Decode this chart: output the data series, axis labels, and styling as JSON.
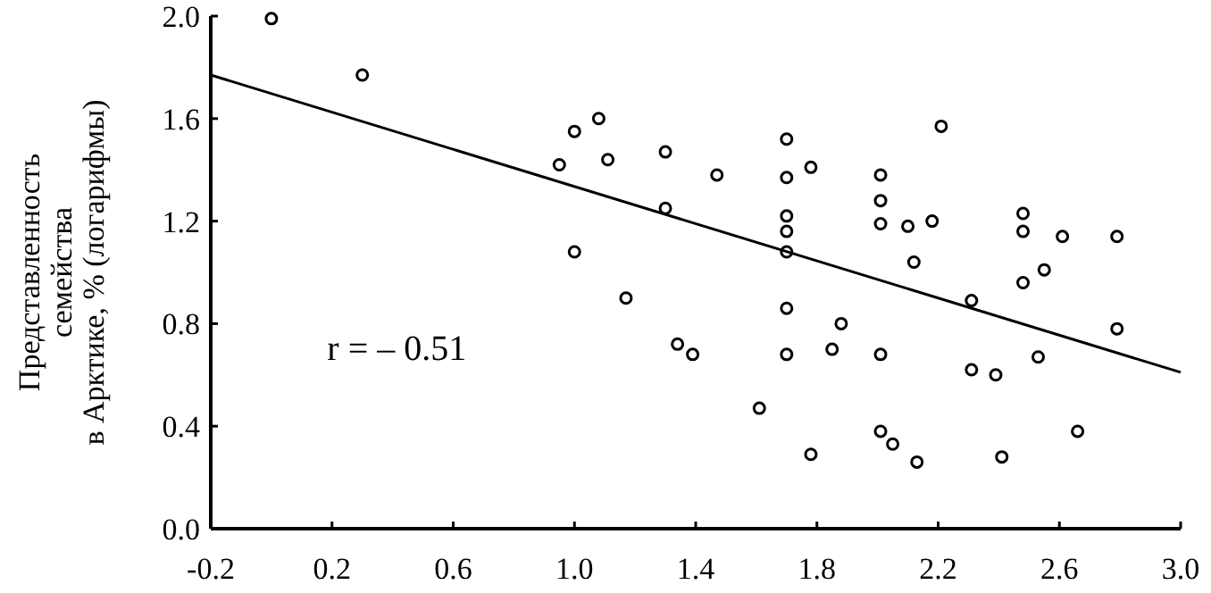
{
  "chart_data": {
    "type": "scatter",
    "ylabel": "Представленность\nсемейства\nв Арктике, % (логарифмы)",
    "annotations": [
      "r = – 0.51"
    ],
    "xlim": [
      -0.2,
      3.0
    ],
    "xticks": [
      -0.2,
      0.2,
      0.6,
      {
        "value": 1.0,
        "label": "1.0"
      },
      1.4,
      1.8,
      2.2,
      2.6,
      {
        "value": 3.0,
        "label": "3.0"
      }
    ],
    "ylim": [
      0,
      2.0
    ],
    "yticks": [
      {
        "value": 0,
        "label": "0.0"
      },
      0.4,
      0.8,
      1.2,
      1.6,
      {
        "value": 2.0,
        "label": "2.0"
      }
    ],
    "series": [
      {
        "marker": "circle",
        "color": "#000000",
        "x": [
          0.0,
          0.3,
          1.0,
          1.08,
          0.95,
          1.11,
          1.3,
          1.3,
          1.0,
          1.47,
          1.7,
          1.7,
          1.78,
          1.7,
          1.7,
          1.7,
          1.7,
          1.88,
          1.7,
          1.85,
          2.01,
          2.01,
          2.01,
          2.1,
          2.18,
          2.21,
          2.12,
          2.31,
          2.01,
          2.48,
          2.48,
          2.61,
          2.79,
          2.55,
          2.48,
          2.79,
          2.53,
          1.17,
          1.39,
          1.34,
          2.31,
          2.39,
          1.61,
          1.78,
          2.01,
          2.05,
          2.13,
          2.41,
          2.66
        ],
        "values": [
          1.99,
          1.77,
          1.55,
          1.6,
          1.42,
          1.44,
          1.47,
          1.25,
          1.08,
          1.38,
          1.52,
          1.37,
          1.41,
          1.22,
          1.16,
          1.08,
          0.86,
          0.8,
          0.68,
          0.7,
          1.38,
          1.28,
          1.19,
          1.18,
          1.2,
          1.57,
          1.04,
          0.89,
          0.68,
          1.23,
          1.16,
          1.14,
          1.14,
          1.01,
          0.96,
          0.78,
          0.67,
          0.9,
          0.68,
          0.72,
          0.62,
          0.6,
          0.47,
          0.29,
          0.38,
          0.33,
          0.26,
          0.28,
          0.38
        ]
      },
      {
        "type": "line",
        "color": "#000000",
        "x": [
          -0.2,
          3.0
        ],
        "values": [
          1.77,
          0.61
        ]
      }
    ]
  }
}
